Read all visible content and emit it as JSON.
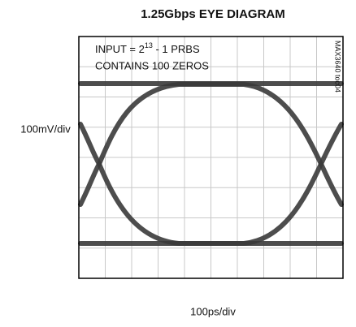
{
  "header": {
    "title": "1.25Gbps EYE DIAGRAM"
  },
  "axes": {
    "y_label": "100mV/div",
    "x_label": "100ps/div"
  },
  "annotation": {
    "line1": {
      "base": "INPUT = 2",
      "superscript": "13",
      "rest": " - 1 PRBS"
    },
    "line2": "CONTAINS 100 ZEROS"
  },
  "figure_code": "MAX3640 toc04"
}
